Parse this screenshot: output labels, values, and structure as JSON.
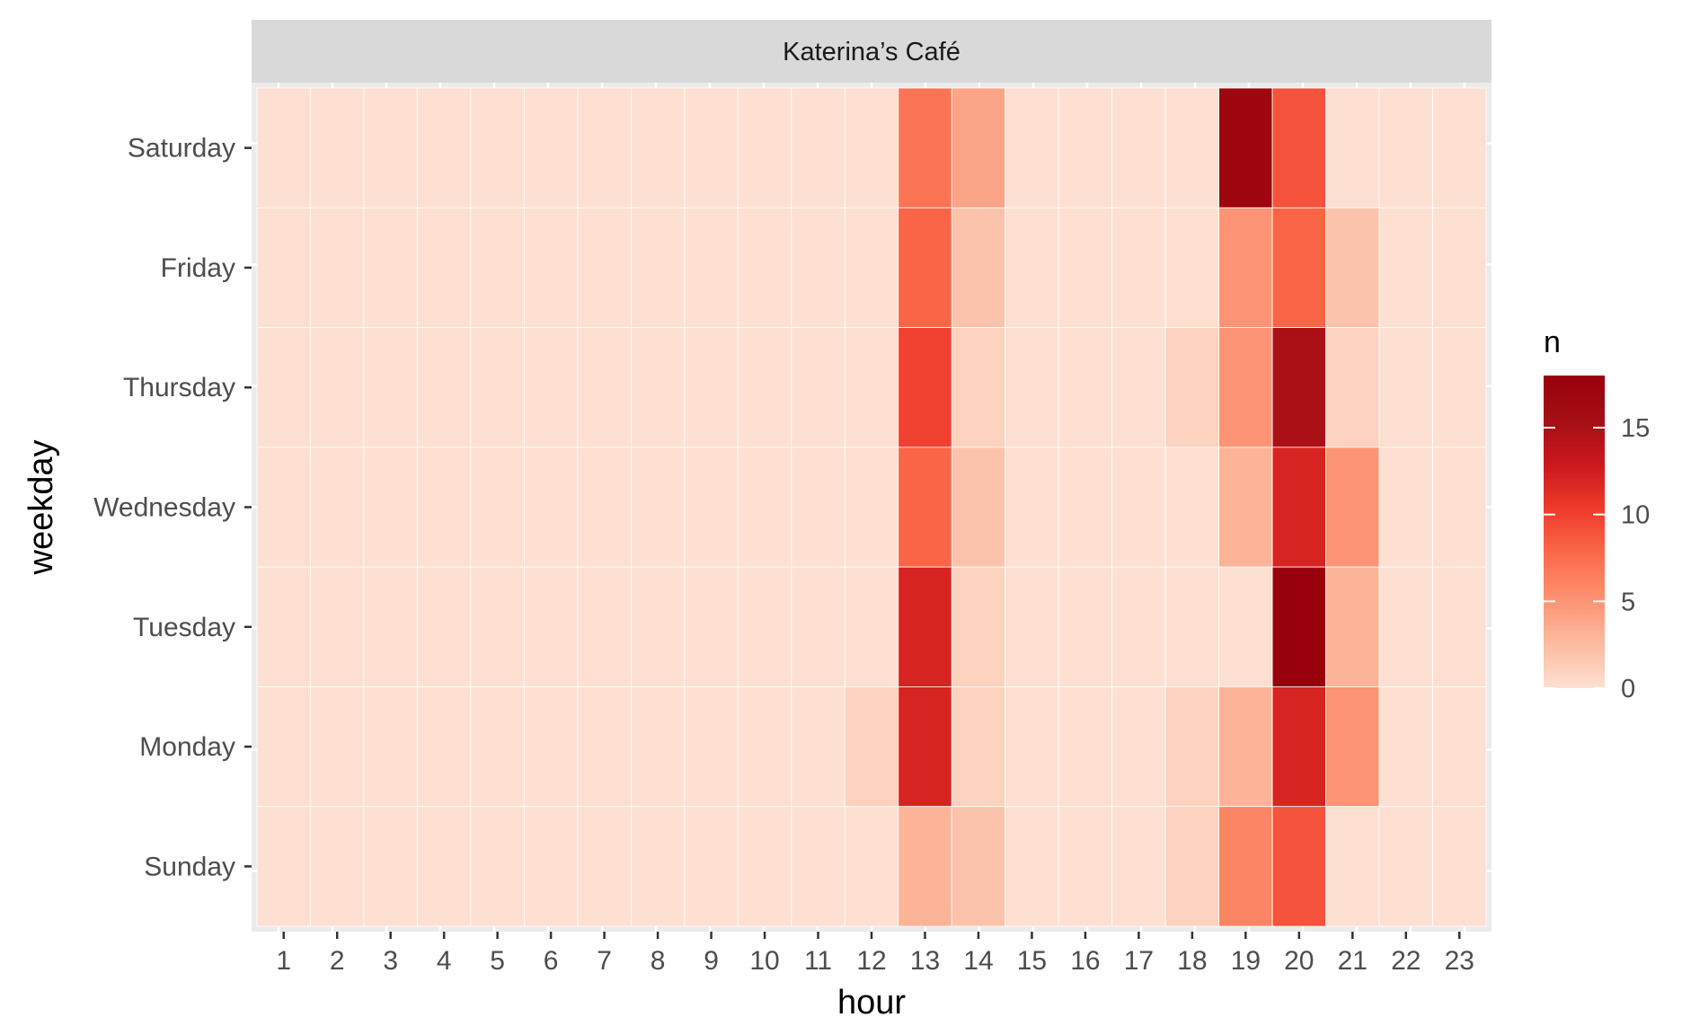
{
  "chart_data": {
    "type": "heatmap",
    "title": "",
    "facet_label": "Katerina’s Café",
    "xlabel": "hour",
    "ylabel": "weekday",
    "x": [
      1,
      2,
      3,
      4,
      5,
      6,
      7,
      8,
      9,
      10,
      11,
      12,
      13,
      14,
      15,
      16,
      17,
      18,
      19,
      20,
      21,
      22,
      23
    ],
    "y": [
      "Saturday",
      "Friday",
      "Thursday",
      "Wednesday",
      "Tuesday",
      "Monday",
      "Sunday"
    ],
    "values": [
      [
        0,
        0,
        0,
        0,
        0,
        0,
        0,
        0,
        0,
        0,
        0,
        0,
        7,
        4,
        0,
        0,
        0,
        0,
        17,
        9,
        0,
        0,
        0
      ],
      [
        0,
        0,
        0,
        0,
        0,
        0,
        0,
        0,
        0,
        0,
        0,
        0,
        8,
        2,
        0,
        0,
        0,
        0,
        5,
        8,
        2,
        0,
        0
      ],
      [
        0,
        0,
        0,
        0,
        0,
        0,
        0,
        0,
        0,
        0,
        0,
        0,
        10,
        1,
        0,
        0,
        0,
        1,
        5,
        15,
        1,
        0,
        0
      ],
      [
        0,
        0,
        0,
        0,
        0,
        0,
        0,
        0,
        0,
        0,
        0,
        0,
        8,
        2,
        0,
        0,
        0,
        0,
        3,
        12,
        5,
        0,
        0
      ],
      [
        0,
        0,
        0,
        0,
        0,
        0,
        0,
        0,
        0,
        0,
        0,
        0,
        12,
        1,
        0,
        0,
        0,
        0,
        0,
        18,
        3,
        0,
        0
      ],
      [
        0,
        0,
        0,
        0,
        0,
        0,
        0,
        0,
        0,
        0,
        0,
        1,
        12,
        1,
        0,
        0,
        0,
        1,
        3,
        12,
        5,
        0,
        0
      ],
      [
        0,
        0,
        0,
        0,
        0,
        0,
        0,
        0,
        0,
        0,
        0,
        0,
        3,
        2,
        0,
        0,
        0,
        1,
        6,
        9,
        0,
        0,
        0
      ]
    ],
    "legend": {
      "title": "n",
      "ticks": [
        0,
        5,
        10,
        15
      ],
      "range": [
        0,
        18
      ],
      "colors": [
        "#fee0d2",
        "#fcbba1",
        "#fc9272",
        "#fb6a4a",
        "#ef3b2c",
        "#cb181d",
        "#a50f15",
        "#99000d"
      ]
    },
    "panel_background": "#ebebeb",
    "strip_background": "#d9d9d9",
    "grid": true
  }
}
